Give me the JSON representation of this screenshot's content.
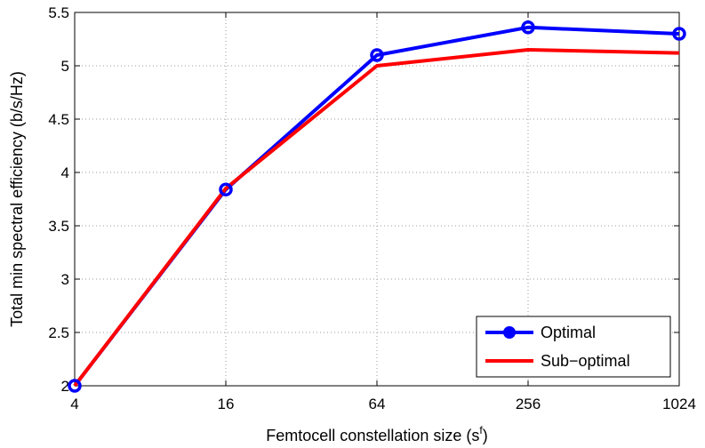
{
  "chart_data": {
    "type": "line",
    "categories": [
      "4",
      "16",
      "64",
      "256",
      "1024"
    ],
    "xlabel": "Femtocell constellation size (s",
    "xlabel_sup": "f",
    "xlabel_close": ")",
    "ylabel": "Total min spectral efficiency (b/s/Hz)",
    "ylim": [
      2,
      5.5
    ],
    "yticks": [
      "2",
      "2.5",
      "3",
      "3.5",
      "4",
      "4.5",
      "5",
      "5.5"
    ],
    "grid": true,
    "legend_position": "bottom-right",
    "series": [
      {
        "name": "Optimal",
        "color": "#0000ff",
        "marker": "circle",
        "values": [
          2.0,
          3.84,
          5.1,
          5.36,
          5.3
        ]
      },
      {
        "name": "Sub−optimal",
        "color": "#ff0000",
        "marker": "none",
        "values": [
          2.0,
          3.85,
          5.0,
          5.15,
          5.12
        ]
      }
    ]
  }
}
